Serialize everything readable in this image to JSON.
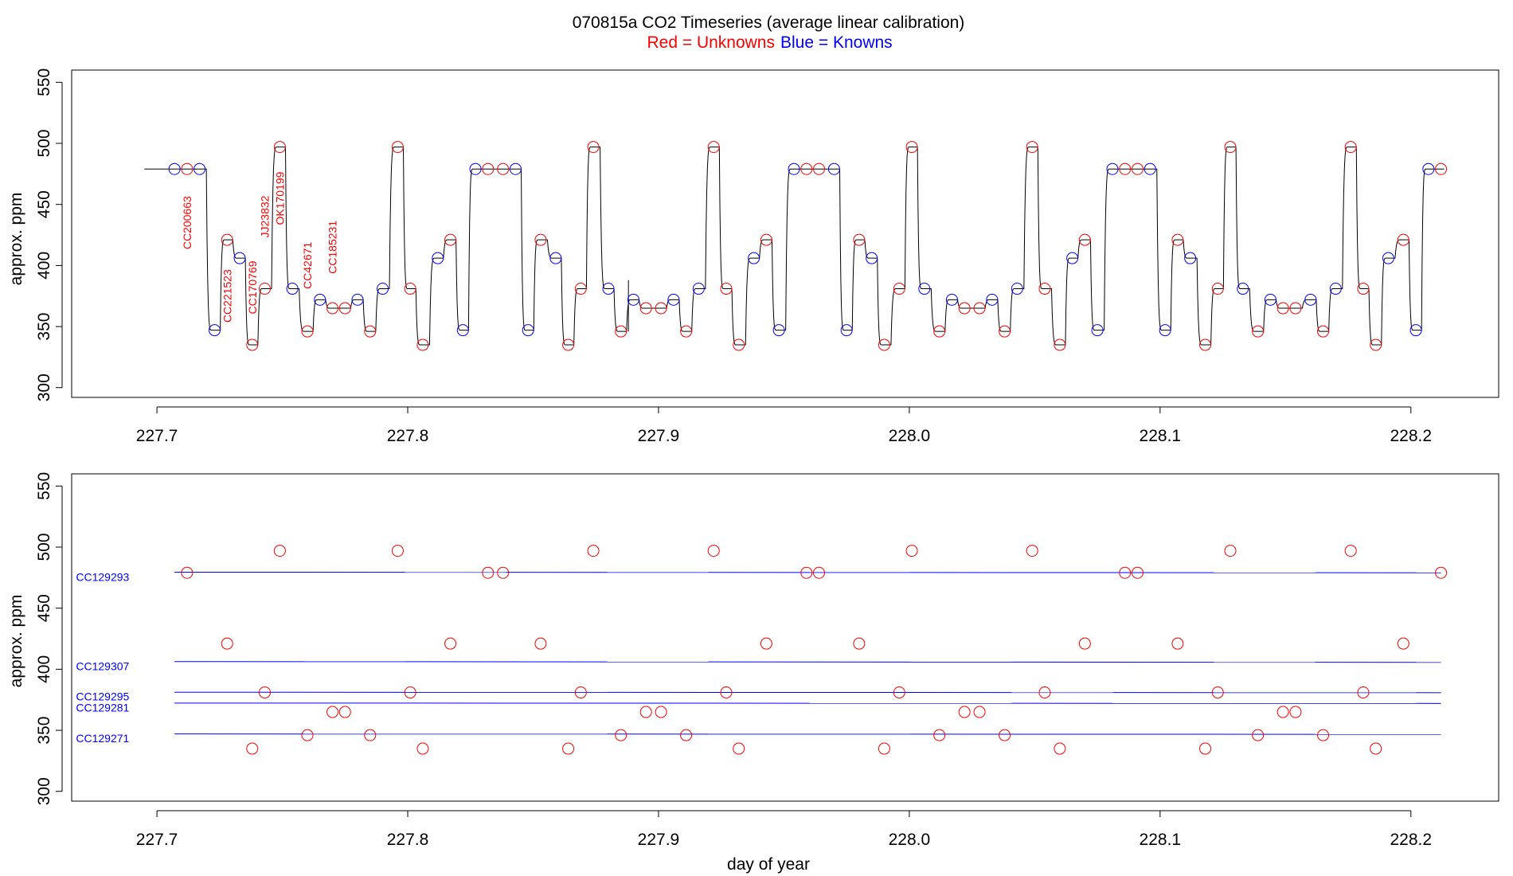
{
  "chart_data": [
    {
      "type": "line",
      "title": "070815a   CO2 Timeseries (average linear calibration)",
      "subtitle": {
        "unknowns": "Red = Unknowns",
        "knowns": "Blue = Knowns"
      },
      "ylabel": "approx. ppm",
      "xlabel": "",
      "xlim": [
        227.666,
        228.235
      ],
      "ylim": [
        292,
        560
      ],
      "xticks": [
        "227.7",
        "227.8",
        "227.9",
        "228.0",
        "228.1",
        "228.2"
      ],
      "yticks": [
        "300",
        "350",
        "400",
        "450",
        "500",
        "550"
      ],
      "grid": false,
      "series": [
        {
          "role": "trace",
          "values": "step trace through the sample points below"
        },
        {
          "role": "points",
          "points": [
            [
              227.707,
              479,
              "known"
            ],
            [
              227.712,
              479,
              "unknown"
            ],
            [
              227.717,
              479,
              "known"
            ],
            [
              227.723,
              347,
              "known"
            ],
            [
              227.728,
              421,
              "unknown"
            ],
            [
              227.733,
              406,
              "known"
            ],
            [
              227.738,
              335,
              "unknown"
            ],
            [
              227.743,
              381,
              "unknown"
            ],
            [
              227.749,
              497,
              "unknown"
            ],
            [
              227.754,
              381,
              "known"
            ],
            [
              227.76,
              346,
              "unknown"
            ],
            [
              227.765,
              372,
              "known"
            ],
            [
              227.77,
              365,
              "unknown"
            ],
            [
              227.775,
              365,
              "unknown"
            ],
            [
              227.78,
              372,
              "known"
            ],
            [
              227.785,
              346,
              "unknown"
            ],
            [
              227.79,
              381,
              "known"
            ],
            [
              227.796,
              497,
              "unknown"
            ],
            [
              227.801,
              381,
              "unknown"
            ],
            [
              227.806,
              335,
              "unknown"
            ],
            [
              227.812,
              406,
              "known"
            ],
            [
              227.817,
              421,
              "unknown"
            ],
            [
              227.822,
              347,
              "known"
            ],
            [
              227.827,
              479,
              "known"
            ],
            [
              227.832,
              479,
              "unknown"
            ],
            [
              227.838,
              479,
              "unknown"
            ],
            [
              227.843,
              479,
              "known"
            ],
            [
              227.848,
              347,
              "known"
            ],
            [
              227.853,
              421,
              "unknown"
            ],
            [
              227.859,
              406,
              "known"
            ],
            [
              227.864,
              335,
              "unknown"
            ],
            [
              227.869,
              381,
              "unknown"
            ],
            [
              227.874,
              497,
              "unknown"
            ],
            [
              227.88,
              381,
              "known"
            ],
            [
              227.885,
              346,
              "unknown"
            ],
            [
              227.89,
              372,
              "known"
            ],
            [
              227.895,
              365,
              "unknown"
            ],
            [
              227.901,
              365,
              "unknown"
            ],
            [
              227.906,
              372,
              "known"
            ],
            [
              227.911,
              346,
              "unknown"
            ],
            [
              227.916,
              381,
              "known"
            ],
            [
              227.922,
              497,
              "unknown"
            ],
            [
              227.927,
              381,
              "unknown"
            ],
            [
              227.932,
              335,
              "unknown"
            ],
            [
              227.938,
              406,
              "known"
            ],
            [
              227.943,
              421,
              "unknown"
            ],
            [
              227.948,
              347,
              "known"
            ],
            [
              227.954,
              479,
              "known"
            ],
            [
              227.959,
              479,
              "unknown"
            ],
            [
              227.964,
              479,
              "unknown"
            ],
            [
              227.97,
              479,
              "known"
            ],
            [
              227.975,
              347,
              "known"
            ],
            [
              227.98,
              421,
              "unknown"
            ],
            [
              227.985,
              406,
              "known"
            ],
            [
              227.99,
              335,
              "unknown"
            ],
            [
              227.996,
              381,
              "unknown"
            ],
            [
              228.001,
              497,
              "unknown"
            ],
            [
              228.006,
              381,
              "known"
            ],
            [
              228.012,
              346,
              "unknown"
            ],
            [
              228.017,
              372,
              "known"
            ],
            [
              228.022,
              365,
              "unknown"
            ],
            [
              228.028,
              365,
              "unknown"
            ],
            [
              228.033,
              372,
              "known"
            ],
            [
              228.038,
              346,
              "unknown"
            ],
            [
              228.043,
              381,
              "known"
            ],
            [
              228.049,
              497,
              "unknown"
            ],
            [
              228.054,
              381,
              "unknown"
            ],
            [
              228.06,
              335,
              "unknown"
            ],
            [
              228.065,
              406,
              "known"
            ],
            [
              228.07,
              421,
              "unknown"
            ],
            [
              228.075,
              347,
              "known"
            ],
            [
              228.081,
              479,
              "known"
            ],
            [
              228.086,
              479,
              "unknown"
            ],
            [
              228.091,
              479,
              "unknown"
            ],
            [
              228.096,
              479,
              "known"
            ],
            [
              228.102,
              347,
              "known"
            ],
            [
              228.107,
              421,
              "unknown"
            ],
            [
              228.112,
              406,
              "known"
            ],
            [
              228.118,
              335,
              "unknown"
            ],
            [
              228.123,
              381,
              "unknown"
            ],
            [
              228.128,
              497,
              "unknown"
            ],
            [
              228.133,
              381,
              "known"
            ],
            [
              228.139,
              346,
              "unknown"
            ],
            [
              228.144,
              372,
              "known"
            ],
            [
              228.149,
              365,
              "unknown"
            ],
            [
              228.154,
              365,
              "unknown"
            ],
            [
              228.16,
              372,
              "known"
            ],
            [
              228.165,
              346,
              "unknown"
            ],
            [
              228.17,
              381,
              "known"
            ],
            [
              228.176,
              497,
              "unknown"
            ],
            [
              228.181,
              381,
              "unknown"
            ],
            [
              228.186,
              335,
              "unknown"
            ],
            [
              228.191,
              406,
              "known"
            ],
            [
              228.197,
              421,
              "unknown"
            ],
            [
              228.202,
              347,
              "known"
            ],
            [
              228.207,
              479,
              "known"
            ],
            [
              228.212,
              479,
              "unknown"
            ]
          ]
        }
      ],
      "annotations": [
        {
          "text": "CC200663",
          "x": 227.712,
          "y": 435
        },
        {
          "text": "CC221523",
          "x": 227.728,
          "y": 375
        },
        {
          "text": "CC170769",
          "x": 227.738,
          "y": 382
        },
        {
          "text": "JJ23832",
          "x": 227.743,
          "y": 440
        },
        {
          "text": "OK170199",
          "x": 227.749,
          "y": 455
        },
        {
          "text": "CC42671",
          "x": 227.76,
          "y": 400
        },
        {
          "text": "CC185231",
          "x": 227.77,
          "y": 415
        }
      ]
    },
    {
      "type": "scatter",
      "title": "",
      "xlabel": "day of year",
      "ylabel": "approx. ppm",
      "xlim": [
        227.666,
        228.235
      ],
      "ylim": [
        292,
        560
      ],
      "xticks": [
        "227.7",
        "227.8",
        "227.9",
        "228.0",
        "228.1",
        "228.2"
      ],
      "yticks": [
        "300",
        "350",
        "400",
        "450",
        "500",
        "550"
      ],
      "grid": false,
      "reference_lines": [
        {
          "name": "CC129293",
          "y_start": 479.5,
          "y_end": 479.0,
          "label_y": 475
        },
        {
          "name": "CC129307",
          "y_start": 406.3,
          "y_end": 405.6,
          "label_y": 402
        },
        {
          "name": "CC129295",
          "y_start": 381.2,
          "y_end": 380.8,
          "label_y": 377
        },
        {
          "name": "CC129281",
          "y_start": 372.3,
          "y_end": 372.0,
          "label_y": 368
        },
        {
          "name": "CC129271",
          "y_start": 347.0,
          "y_end": 346.7,
          "label_y": 343
        }
      ],
      "reference_x_range": [
        227.707,
        228.212
      ],
      "unknown_points_note": "same unknown samples as upper panel"
    }
  ],
  "colors": {
    "unknown": "#ff0000",
    "known": "#0000ff",
    "trace": "#000000"
  }
}
